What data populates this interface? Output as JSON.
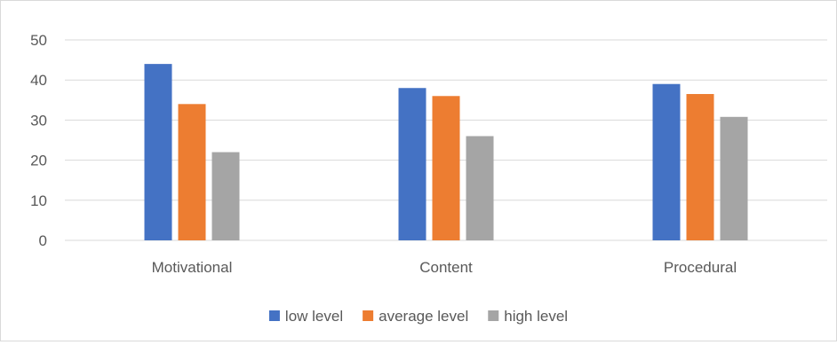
{
  "chart_data": {
    "type": "bar",
    "title": "",
    "xlabel": "",
    "ylabel": "",
    "categories": [
      "Motivational",
      "Content",
      "Procedural"
    ],
    "series": [
      {
        "name": "low level",
        "values": [
          44,
          38,
          39
        ],
        "color": "#4472C4"
      },
      {
        "name": "average level",
        "values": [
          34,
          36,
          36.5
        ],
        "color": "#ED7D31"
      },
      {
        "name": "high level",
        "values": [
          22,
          26,
          30.8
        ],
        "color": "#A5A5A5"
      }
    ],
    "ylim": [
      0,
      50
    ],
    "yticks": [
      "0",
      "10",
      "20",
      "30",
      "40",
      "50"
    ],
    "grid": true,
    "legend_position": "bottom"
  }
}
